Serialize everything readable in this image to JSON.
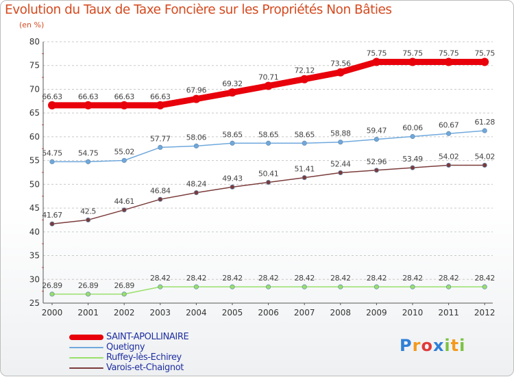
{
  "header": {
    "title": "Evolution du Taux de Taxe Foncière sur les Propriétés Non Bâties",
    "unit": "(en %)"
  },
  "chart_data": {
    "type": "line",
    "title": "Evolution du Taux de Taxe Foncière sur les Propriétés Non Bâties",
    "ylabel": "(en %)",
    "xlabel": "",
    "x": [
      "2000",
      "2001",
      "2002",
      "2003",
      "2004",
      "2005",
      "2006",
      "2007",
      "2008",
      "2009",
      "2010",
      "2011",
      "2012"
    ],
    "ylim": [
      25,
      80
    ],
    "yticks": [
      25,
      30,
      35,
      40,
      45,
      50,
      55,
      60,
      65,
      70,
      75,
      80
    ],
    "grid": "horizontal dashed",
    "series": [
      {
        "name": "SAINT-APOLLINAIRE",
        "color": "#e8000b",
        "values": [
          66.63,
          66.63,
          66.63,
          66.63,
          67.96,
          69.32,
          70.71,
          72.12,
          73.56,
          75.75,
          75.75,
          75.75,
          75.75
        ],
        "labels": [
          "66.63",
          "66.63",
          "66.63",
          "66.63",
          "67.96",
          "69.32",
          "70.71",
          "72.12",
          "73.56",
          "75.75",
          "75.75",
          "75.75",
          "75.75"
        ]
      },
      {
        "name": "Quetigny",
        "color": "#6fa8dc",
        "values": [
          54.75,
          54.75,
          55.02,
          57.77,
          58.06,
          58.65,
          58.65,
          58.65,
          58.88,
          59.47,
          60.06,
          60.67,
          61.28
        ],
        "labels": [
          "54.75",
          "54.75",
          "55.02",
          "57.77",
          "58.06",
          "58.65",
          "58.65",
          "58.65",
          "58.88",
          "59.47",
          "60.06",
          "60.67",
          "61.28"
        ]
      },
      {
        "name": "Ruffey-lès-Echirey",
        "color": "#99e06a",
        "values": [
          26.89,
          26.89,
          26.89,
          28.42,
          28.42,
          28.42,
          28.42,
          28.42,
          28.42,
          28.42,
          28.42,
          28.42,
          28.42
        ],
        "labels": [
          "26.89",
          "26.89",
          "26.89",
          "28.42",
          "28.42",
          "28.42",
          "28.42",
          "28.42",
          "28.42",
          "28.42",
          "28.42",
          "28.42",
          "28.42"
        ]
      },
      {
        "name": "Varois-et-Chaignot",
        "color": "#7b3a3a",
        "values": [
          41.67,
          42.5,
          44.61,
          46.84,
          48.24,
          49.43,
          50.41,
          51.41,
          52.44,
          52.96,
          53.49,
          54.02,
          54.02
        ],
        "labels": [
          "41.67",
          "42.5",
          "44.61",
          "46.84",
          "48.24",
          "49.43",
          "50.41",
          "51.41",
          "52.44",
          "52.96",
          "53.49",
          "54.02",
          "54.02"
        ]
      }
    ],
    "legend_position": "bottom-left"
  },
  "legend": {
    "items": [
      {
        "label": "SAINT-APOLLINAIRE",
        "color": "#e8000b"
      },
      {
        "label": "Quetigny",
        "color": "#6fa8dc"
      },
      {
        "label": "Ruffey-lès-Echirey",
        "color": "#99e06a"
      },
      {
        "label": "Varois-et-Chaignot",
        "color": "#7b3a3a"
      }
    ]
  },
  "logo": {
    "letters": [
      "P",
      "r",
      "o",
      "x",
      "i",
      "t",
      "i"
    ],
    "colors": [
      "#2f7fd6",
      "#f39a1e",
      "#e03a3a",
      "#2f7fd6",
      "#7cc242",
      "#f39a1e",
      "#7cc242"
    ]
  }
}
